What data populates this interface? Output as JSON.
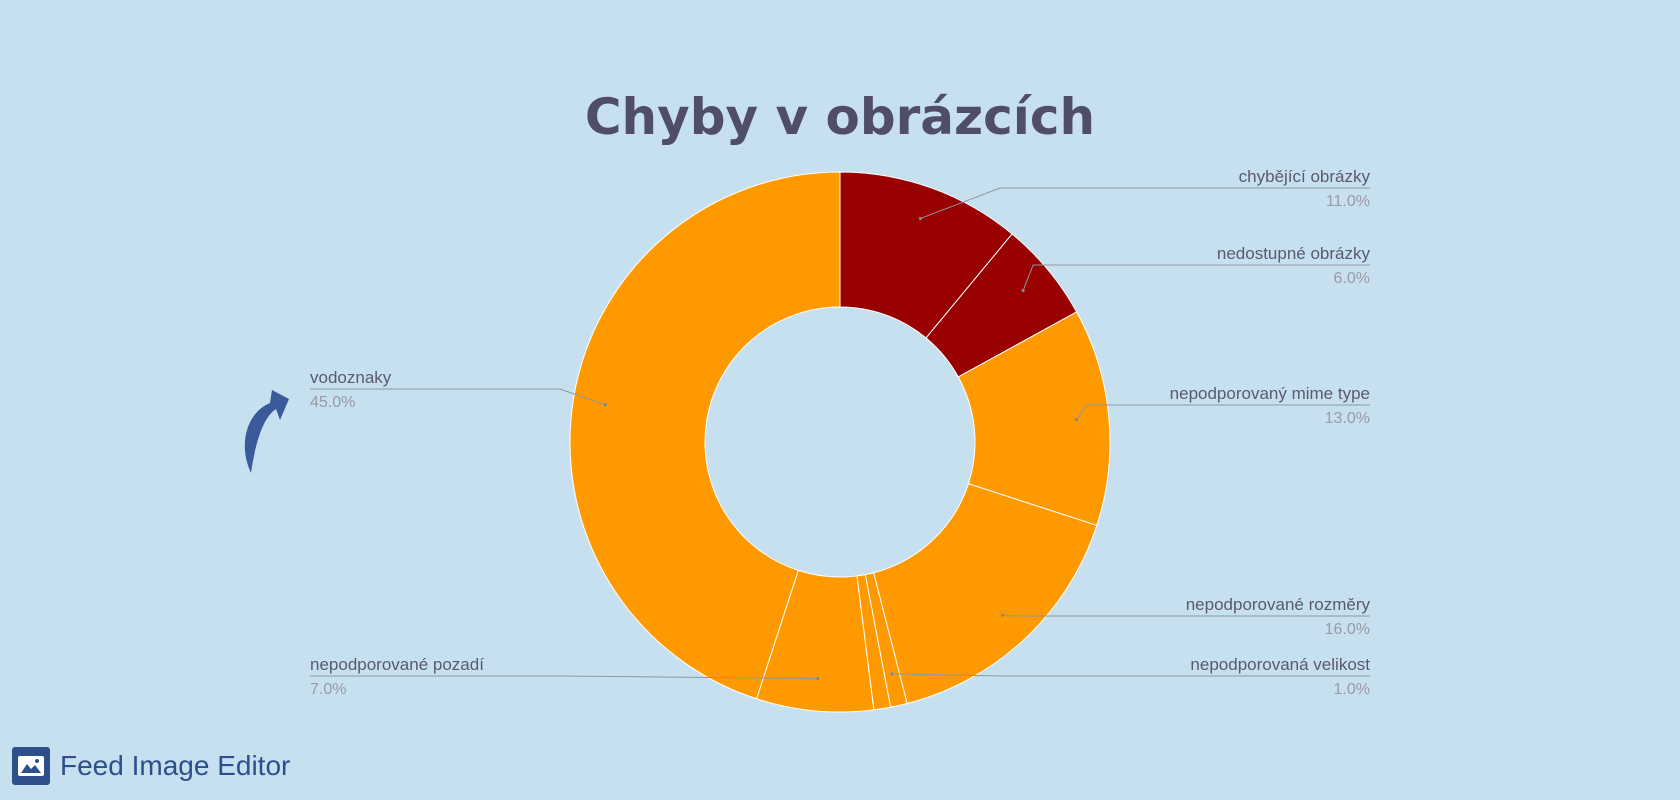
{
  "colors": {
    "background": "#c7e0f0",
    "red": "#990000",
    "orange": "#ff9900",
    "brand": "#2d4f8c"
  },
  "brand": {
    "name": "Feed Image Editor",
    "icon": "image-icon"
  },
  "chart_data": {
    "type": "pie",
    "variant": "donut",
    "title": "Chyby v obrázcích",
    "slices": [
      {
        "label": "chybějící obrázky",
        "value": 11.0,
        "value_label": "11.0%",
        "color": "#990000",
        "side": "right"
      },
      {
        "label": "nedostupné obrázky",
        "value": 6.0,
        "value_label": "6.0%",
        "color": "#990000",
        "side": "right"
      },
      {
        "label": "nepodporovaný mime type",
        "value": 13.0,
        "value_label": "13.0%",
        "color": "#ff9900",
        "side": "right"
      },
      {
        "label": "nepodporované rozměry",
        "value": 16.0,
        "value_label": "16.0%",
        "color": "#ff9900",
        "side": "right"
      },
      {
        "label": "nepodporovaná velikost",
        "value": 1.0,
        "value_label": "1.0%",
        "color": "#ff9900",
        "side": "right"
      },
      {
        "label": "",
        "value": 1.0,
        "value_label": "",
        "color": "#ff9900",
        "side": ""
      },
      {
        "label": "nepodporované pozadí",
        "value": 7.0,
        "value_label": "7.0%",
        "color": "#ff9900",
        "side": "left"
      },
      {
        "label": "vodoznaky",
        "value": 45.0,
        "value_label": "45.0%",
        "color": "#ff9900",
        "side": "left"
      }
    ],
    "annotation": {
      "icon": "curved-arrow-icon",
      "color": "#3a5a9a"
    }
  }
}
